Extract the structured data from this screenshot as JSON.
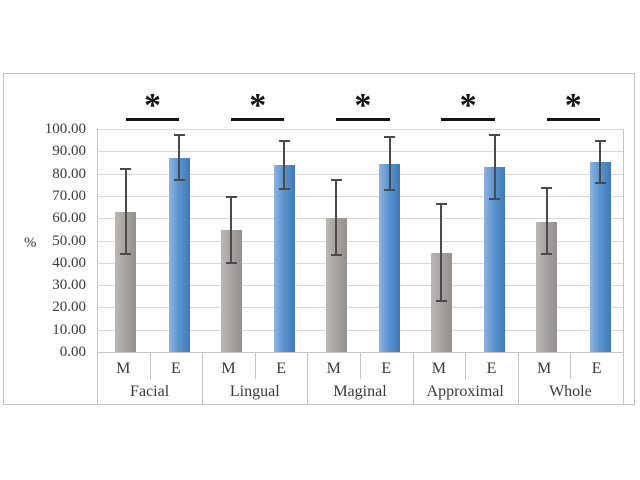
{
  "chart_data": {
    "type": "bar",
    "title": "",
    "xlabel": "",
    "ylabel": "%",
    "ylim": [
      0,
      100
    ],
    "ytick_step": 10,
    "ytick_labels": [
      "100.00",
      "90.00",
      "80.00",
      "70.00",
      "60.00",
      "50.00",
      "40.00",
      "30.00",
      "20.00",
      "10.00",
      "0.00"
    ],
    "categories": [
      "Facial",
      "Lingual",
      "Maginal",
      "Approximal",
      "Whole"
    ],
    "series_labels": [
      "M",
      "E"
    ],
    "series": [
      {
        "name": "M",
        "color": "#a8a4a1",
        "values": [
          63,
          54.5,
          60,
          44.5,
          58.5
        ],
        "error_high": [
          82,
          69.5,
          77,
          66.5,
          73.5
        ],
        "error_low": [
          44,
          40,
          43.5,
          23,
          44
        ]
      },
      {
        "name": "E",
        "color": "#4e8bc8",
        "values": [
          87,
          84,
          84.5,
          83,
          85
        ],
        "error_high": [
          97.5,
          94.5,
          96.5,
          97.5,
          94.5
        ],
        "error_low": [
          77,
          73,
          72.5,
          68.5,
          76
        ]
      }
    ],
    "significance_markers": [
      "*",
      "*",
      "*",
      "*",
      "*"
    ],
    "legend_position": "none",
    "grid": true
  },
  "colors": {
    "gridline": "#d9d9d9",
    "axis_line": "#c6c6c6",
    "frame_border": "#c3c3c3",
    "text": "#3a3a3a",
    "error_bar": "#4a4a4a",
    "significance_line": "#141414"
  }
}
